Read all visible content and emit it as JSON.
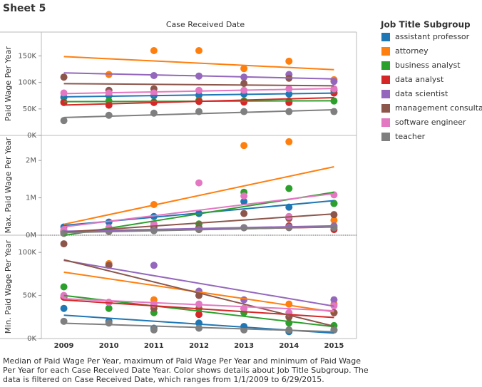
{
  "sheet_title": "Sheet 5",
  "column_header": "Case Received Date",
  "legend_title": "Job Title Subgroup",
  "caption": "Median of Paid Wage Per Year, maximum of  Paid Wage Per Year and minimum of Paid Wage Per Year for each Case Received Date Year.  Color shows details about Job Title Subgroup. The data is filtered on Case Received Date, which ranges from 1/1/2009 to 6/29/2015.",
  "chart_data": [
    {
      "type": "scatter",
      "trend_lines": true,
      "y_title": "Paid Wage Per Year",
      "categories": [
        "2009",
        "2010",
        "2011",
        "2012",
        "2013",
        "2014",
        "2015"
      ],
      "ylim": [
        0,
        195000
      ],
      "yticks": [
        {
          "value": 0,
          "label": "0K"
        },
        {
          "value": 50000,
          "label": "50K"
        },
        {
          "value": 100000,
          "label": "100K"
        },
        {
          "value": 150000,
          "label": "150K"
        }
      ],
      "series": [
        {
          "name": "assistant professor",
          "color": "#1f77b4",
          "values": [
            72000,
            75000,
            75000,
            76000,
            78000,
            78000,
            80000
          ]
        },
        {
          "name": "attorney",
          "color": "#ff7f0e",
          "values": [
            null,
            115000,
            160000,
            160000,
            126000,
            140000,
            105000
          ]
        },
        {
          "name": "business analyst",
          "color": "#2ca02c",
          "values": [
            63000,
            65000,
            63000,
            66000,
            65000,
            65000,
            65000
          ]
        },
        {
          "name": "data analyst",
          "color": "#d62728",
          "values": [
            62000,
            57000,
            62000,
            64000,
            63000,
            62000,
            80000
          ]
        },
        {
          "name": "data scientist",
          "color": "#9467bd",
          "values": [
            null,
            null,
            113000,
            112000,
            110000,
            115000,
            102000
          ]
        },
        {
          "name": "management consultant",
          "color": "#8c564b",
          "values": [
            110000,
            85000,
            88000,
            null,
            98000,
            108000,
            85000
          ]
        },
        {
          "name": "software engineer",
          "color": "#e377c2",
          "values": [
            80000,
            80000,
            80000,
            85000,
            85000,
            88000,
            88000
          ]
        },
        {
          "name": "teacher",
          "color": "#7f7f7f",
          "values": [
            28000,
            38000,
            42000,
            45000,
            45000,
            45000,
            45000
          ]
        }
      ]
    },
    {
      "type": "scatter",
      "trend_lines": true,
      "zero_line": true,
      "y_title": "Max. Paid Wage Per Year",
      "categories": [
        "2009",
        "2010",
        "2011",
        "2012",
        "2013",
        "2014",
        "2015"
      ],
      "ylim": [
        0,
        2670000
      ],
      "yticks": [
        {
          "value": 0,
          "label": "0M"
        },
        {
          "value": 1000000,
          "label": "1M"
        },
        {
          "value": 2000000,
          "label": "2M"
        }
      ],
      "series": [
        {
          "name": "assistant professor",
          "color": "#1f77b4",
          "values": [
            220000,
            350000,
            500000,
            580000,
            900000,
            750000,
            850000
          ]
        },
        {
          "name": "attorney",
          "color": "#ff7f0e",
          "values": [
            100000,
            150000,
            820000,
            null,
            2400000,
            2500000,
            400000
          ]
        },
        {
          "name": "business analyst",
          "color": "#2ca02c",
          "values": [
            100000,
            150000,
            200000,
            300000,
            1150000,
            1250000,
            850000
          ]
        },
        {
          "name": "data analyst",
          "color": "#d62728",
          "values": [
            50000,
            100000,
            150000,
            150000,
            200000,
            250000,
            150000
          ]
        },
        {
          "name": "data scientist",
          "color": "#9467bd",
          "values": [
            100000,
            null,
            150000,
            200000,
            200000,
            220000,
            250000
          ]
        },
        {
          "name": "management consultant",
          "color": "#8c564b",
          "values": [
            100000,
            150000,
            250000,
            200000,
            580000,
            450000,
            550000
          ]
        },
        {
          "name": "software engineer",
          "color": "#e377c2",
          "values": [
            150000,
            200000,
            300000,
            1400000,
            1050000,
            500000,
            1080000
          ]
        },
        {
          "name": "teacher",
          "color": "#7f7f7f",
          "values": [
            50000,
            100000,
            120000,
            150000,
            200000,
            200000,
            200000
          ]
        }
      ]
    },
    {
      "type": "scatter",
      "trend_lines": true,
      "y_title": "Min. Paid Wage Per Year",
      "categories": [
        "2009",
        "2010",
        "2011",
        "2012",
        "2013",
        "2014",
        "2015"
      ],
      "ylim": [
        0,
        120000
      ],
      "yticks": [
        {
          "value": 0,
          "label": "0K"
        },
        {
          "value": 50000,
          "label": "50K"
        },
        {
          "value": 100000,
          "label": "100K"
        }
      ],
      "series": [
        {
          "name": "assistant professor",
          "color": "#1f77b4",
          "values": [
            35000,
            20000,
            12000,
            18000,
            14000,
            8000,
            10000
          ]
        },
        {
          "name": "attorney",
          "color": "#ff7f0e",
          "values": [
            null,
            87000,
            45000,
            null,
            35000,
            40000,
            40000
          ]
        },
        {
          "name": "business analyst",
          "color": "#2ca02c",
          "values": [
            60000,
            35000,
            30000,
            35000,
            30000,
            18000,
            15000
          ]
        },
        {
          "name": "data analyst",
          "color": "#d62728",
          "values": [
            48000,
            42000,
            38000,
            28000,
            null,
            25000,
            30000
          ]
        },
        {
          "name": "data scientist",
          "color": "#9467bd",
          "values": [
            null,
            null,
            85000,
            55000,
            45000,
            null,
            45000
          ]
        },
        {
          "name": "management consultant",
          "color": "#8c564b",
          "values": [
            110000,
            85000,
            35000,
            50000,
            35000,
            25000,
            30000
          ]
        },
        {
          "name": "software engineer",
          "color": "#e377c2",
          "values": [
            50000,
            42000,
            40000,
            40000,
            35000,
            30000,
            38000
          ]
        },
        {
          "name": "teacher",
          "color": "#7f7f7f",
          "values": [
            20000,
            18000,
            10000,
            12000,
            10000,
            10000,
            10000
          ]
        }
      ]
    }
  ]
}
